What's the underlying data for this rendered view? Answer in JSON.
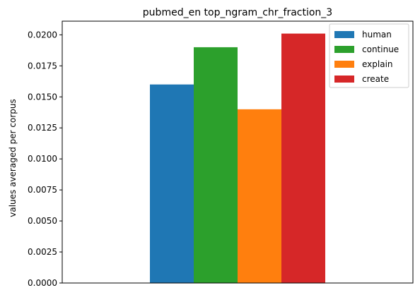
{
  "chart_data": {
    "type": "bar",
    "title": "pubmed_en top_ngram_chr_fraction_3",
    "xlabel": "",
    "ylabel": "values averaged per corpus",
    "ylim": [
      0,
      0.0211
    ],
    "yticks": [
      "0.0000",
      "0.0025",
      "0.0050",
      "0.0075",
      "0.0100",
      "0.0125",
      "0.0150",
      "0.0175",
      "0.0200"
    ],
    "categories": [
      ""
    ],
    "series": [
      {
        "name": "human",
        "values": [
          0.016
        ],
        "color": "#1f77b4"
      },
      {
        "name": "continue",
        "values": [
          0.019
        ],
        "color": "#2ca02c"
      },
      {
        "name": "explain",
        "values": [
          0.014
        ],
        "color": "#ff7f0e"
      },
      {
        "name": "create",
        "values": [
          0.0201
        ],
        "color": "#d62728"
      }
    ],
    "grid": false,
    "legend_position": "top-right"
  }
}
